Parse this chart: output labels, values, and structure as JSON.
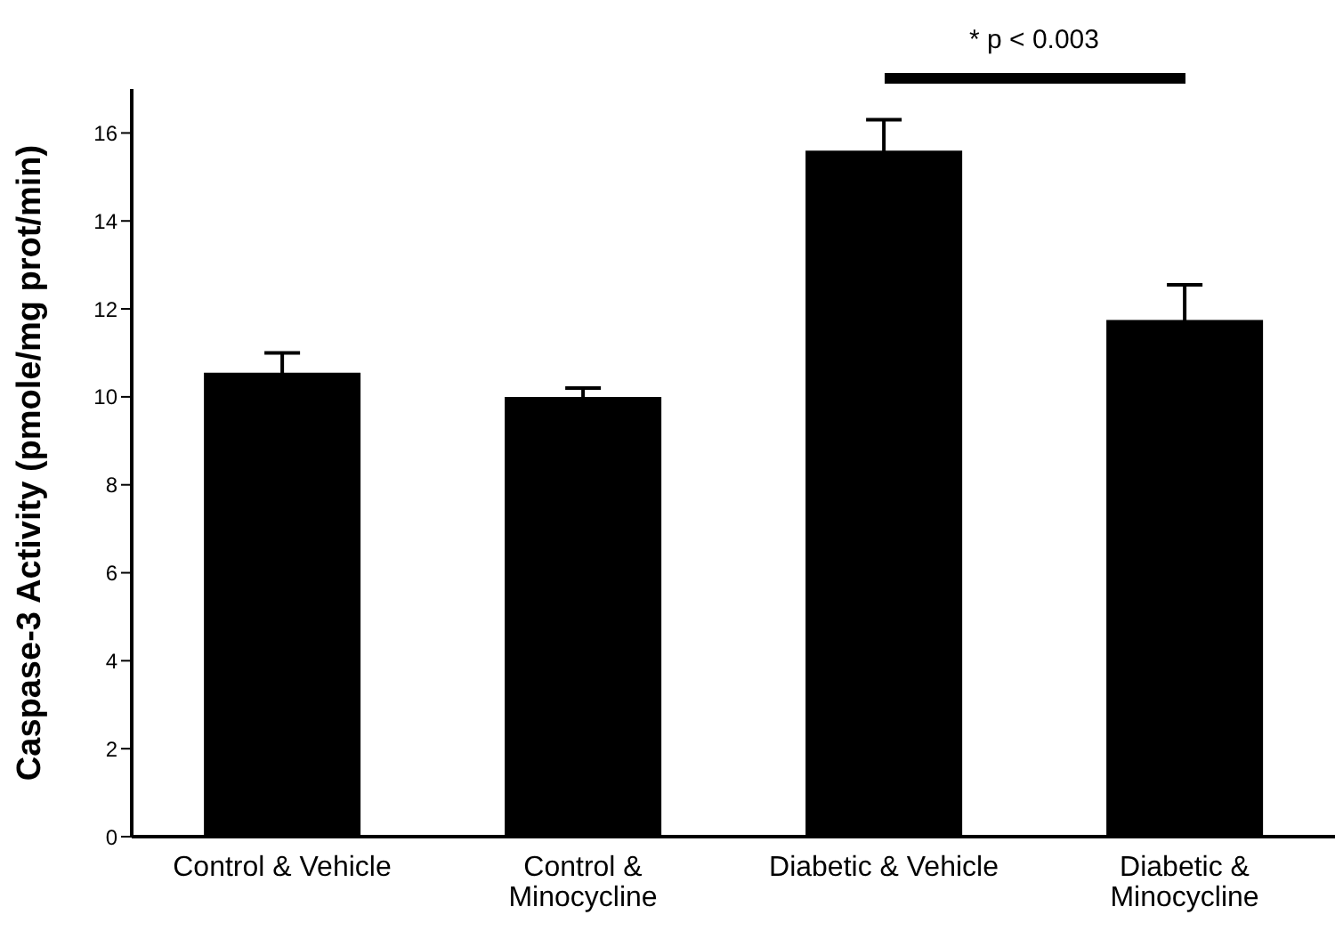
{
  "chart_data": {
    "type": "bar",
    "ylabel": "Caspase-3 Activity (pmole/mg prot/min)",
    "categories": [
      "Control & Vehicle",
      "Control & Minocycline",
      "Diabetic & Vehicle",
      "Diabetic & Minocycline"
    ],
    "values": [
      10.55,
      10.0,
      15.6,
      11.75
    ],
    "errors": [
      0.45,
      0.2,
      0.7,
      0.8
    ],
    "color": "#000000",
    "ylim": [
      0,
      17
    ],
    "yticks": [
      0,
      2,
      4,
      6,
      8,
      10,
      12,
      14,
      16
    ],
    "annotations": [
      "* p < 0.003"
    ]
  }
}
